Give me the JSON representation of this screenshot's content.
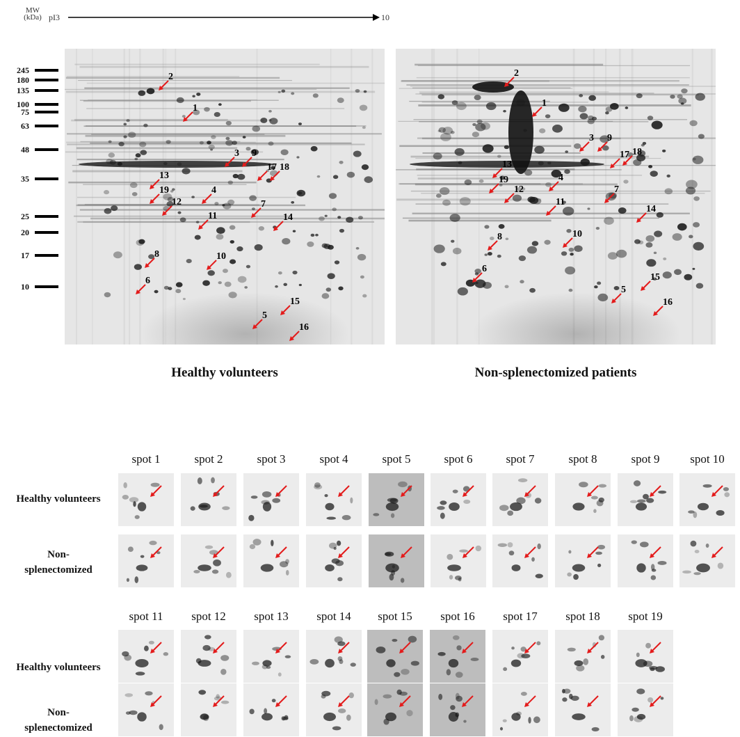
{
  "header": {
    "mw_label_line1": "MW",
    "mw_label_line2": "(kDa)",
    "pi_start": "pI3",
    "pi_end": "10"
  },
  "mw_markers": [
    "245",
    "180",
    "135",
    "100",
    "75",
    "63",
    "48",
    "35",
    "25",
    "20",
    "17",
    "10"
  ],
  "gels": [
    {
      "title": "Healthy volunteers",
      "spot_numbers": [
        "2",
        "1",
        "3",
        "9",
        "17",
        "18",
        "13",
        "19",
        "4",
        "12",
        "11",
        "7",
        "14",
        "8",
        "10",
        "6",
        "5",
        "15",
        "16"
      ]
    },
    {
      "title": "Non-splenectomized patients",
      "spot_numbers": [
        "2",
        "1",
        "3",
        "9",
        "17",
        "18",
        "13",
        "19",
        "4",
        "12",
        "11",
        "7",
        "14",
        "8",
        "10",
        "6",
        "5",
        "15",
        "16"
      ]
    }
  ],
  "panel": {
    "row_labels": {
      "healthy": "Healthy volunteers",
      "nonsplen_line1": "Non-",
      "nonsplen_line2": "splenectomized"
    },
    "spots_row1": [
      "spot 1",
      "spot 2",
      "spot 3",
      "spot 4",
      "spot 5",
      "spot 6",
      "spot 7",
      "spot 8",
      "spot 9",
      "spot 10"
    ],
    "spots_row2": [
      "spot 11",
      "spot 12",
      "spot 13",
      "spot 14",
      "spot 15",
      "spot 16",
      "spot 17",
      "spot 18",
      "spot 19"
    ]
  },
  "colors": {
    "arrow": "#e31b1b",
    "gel_background": "#e4e4e4",
    "spot_dark": "#1a1a1a"
  }
}
